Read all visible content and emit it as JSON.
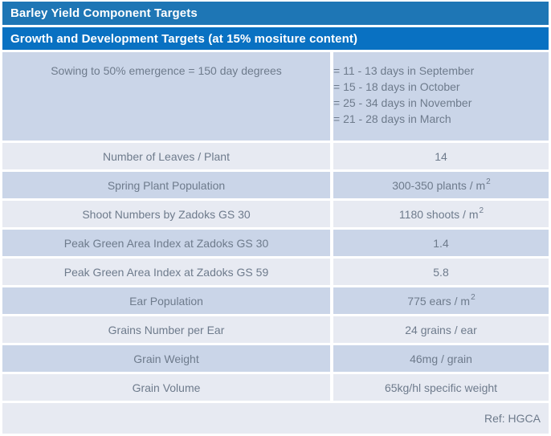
{
  "header": {
    "title": "Barley Yield Component Targets",
    "subtitle": "Growth and Development Targets (at 15% mositure content)"
  },
  "table": {
    "rows": [
      {
        "label": "Sowing to 50% emergence = 150 day degrees",
        "value_lines": [
          "= 11 - 13 days in September",
          "= 15 - 18 days in October",
          "= 25 - 34 days in November",
          "= 21 - 28 days in March"
        ]
      },
      {
        "label": "Number of Leaves / Plant",
        "value": "14"
      },
      {
        "label": "Spring Plant Population",
        "value": "300-350 plants / m",
        "sup": "2"
      },
      {
        "label": "Shoot Numbers by Zadoks GS 30",
        "value": "1180 shoots / m",
        "sup": "2"
      },
      {
        "label": "Peak Green Area Index at Zadoks GS 30",
        "value": "1.4"
      },
      {
        "label": "Peak Green Area Index at Zadoks GS 59",
        "value": "5.8"
      },
      {
        "label": "Ear Population",
        "value": "775 ears / m",
        "sup": "2"
      },
      {
        "label": "Grains Number per Ear",
        "value": "24 grains / ear"
      },
      {
        "label": "Grain Weight",
        "value": "46mg / grain"
      },
      {
        "label": "Grain Volume",
        "value": "65kg/hl specific weight"
      }
    ],
    "footer": "Ref: HGCA"
  },
  "colors": {
    "header_bar1": "#1e76b5",
    "header_bar2": "#0971c2",
    "row_dark": "#cad5e8",
    "row_light": "#e7eaf2",
    "text": "#6e7b8c",
    "header_text": "#ffffff"
  }
}
